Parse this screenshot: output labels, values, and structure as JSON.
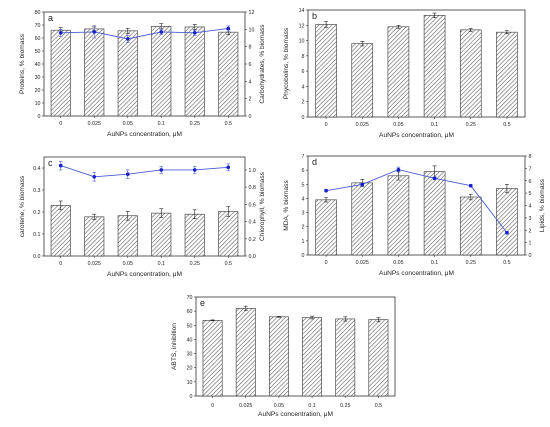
{
  "chart_data": [
    {
      "panel": "a",
      "type": "bar",
      "categories": [
        "0",
        "0.025",
        "0.05",
        "0.1",
        "0.25",
        "0.5"
      ],
      "xlabel": "AuNPs concentration, μM",
      "ylabel": "Proteins, % biomass",
      "ylim": [
        0,
        80
      ],
      "yticks": [
        0,
        10,
        20,
        30,
        40,
        50,
        60,
        70,
        80
      ],
      "values": [
        66,
        67,
        65.5,
        69,
        68.5,
        64.5
      ],
      "errors": [
        2,
        1.5,
        2,
        2,
        2,
        2
      ],
      "y2label": "Carbohydrates, % biomass",
      "y2lim": [
        0,
        12
      ],
      "y2ticks": [
        0,
        2,
        4,
        6,
        8,
        10,
        12
      ],
      "line_values": [
        9.6,
        9.7,
        8.9,
        9.7,
        9.6,
        10.1
      ],
      "line_errors": [
        0.4,
        0.7,
        0.4,
        0.3,
        0.3,
        0.3
      ]
    },
    {
      "panel": "b",
      "type": "bar",
      "categories": [
        "0",
        "0.025",
        "0.05",
        "0.1",
        "0.25",
        "0.5"
      ],
      "xlabel": "AuNPs concentration, μM",
      "ylabel": "Phycobolins, % biomass",
      "ylim": [
        0,
        14
      ],
      "yticks": [
        0,
        2,
        4,
        6,
        8,
        10,
        12,
        14
      ],
      "values": [
        12.1,
        9.6,
        11.8,
        13.3,
        11.4,
        11.1
      ],
      "errors": [
        0.4,
        0.3,
        0.2,
        0.3,
        0.2,
        0.2
      ]
    },
    {
      "panel": "c",
      "type": "bar",
      "categories": [
        "0",
        "0.025",
        "0.05",
        "0.1",
        "0.25",
        "0.5"
      ],
      "xlabel": "AuNPs concentration, μM",
      "ylabel": "carotene, % biomass",
      "ylim": [
        0,
        0.45
      ],
      "yticks": [
        0.0,
        0.1,
        0.2,
        0.3,
        0.4
      ],
      "values": [
        0.23,
        0.178,
        0.183,
        0.195,
        0.19,
        0.202
      ],
      "errors": [
        0.02,
        0.012,
        0.02,
        0.02,
        0.02,
        0.022
      ],
      "y2label": "Chlorophyll, % biomass",
      "y2lim": [
        0,
        1.15
      ],
      "y2ticks": [
        0.0,
        0.2,
        0.4,
        0.6,
        0.8,
        1.0
      ],
      "line_values": [
        1.05,
        0.92,
        0.95,
        1.0,
        1.0,
        1.03
      ],
      "line_errors": [
        0.05,
        0.05,
        0.05,
        0.04,
        0.04,
        0.04
      ]
    },
    {
      "panel": "d",
      "type": "bar",
      "categories": [
        "0",
        "0.025",
        "0.05",
        "0.1",
        "0.25",
        "0.5"
      ],
      "xlabel": "AuNPs concentration, μM",
      "ylabel": "MDA, % biomass",
      "ylim": [
        0,
        7
      ],
      "yticks": [
        0,
        1,
        2,
        3,
        4,
        5,
        6,
        7
      ],
      "values": [
        3.9,
        5.1,
        5.6,
        5.9,
        4.1,
        4.7
      ],
      "errors": [
        0.15,
        0.25,
        0.3,
        0.4,
        0.2,
        0.3
      ],
      "y2label": "Lipids, % biomass",
      "y2lim": [
        0,
        8
      ],
      "y2ticks": [
        0,
        1,
        2,
        3,
        4,
        5,
        6,
        7,
        8
      ],
      "line_values": [
        5.2,
        5.7,
        6.9,
        6.2,
        5.6,
        1.8
      ],
      "line_errors": [
        0.1,
        0.1,
        0.2,
        0.1,
        0.1,
        0.1
      ]
    },
    {
      "panel": "e",
      "type": "bar",
      "categories": [
        "0",
        "0.025",
        "0.05",
        "0.1",
        "0.25",
        "0.5"
      ],
      "xlabel": "AuNPs concentration, μM",
      "ylabel": "ABTS, inhibition",
      "ylim": [
        0,
        70
      ],
      "yticks": [
        0,
        10,
        20,
        30,
        40,
        50,
        60,
        70
      ],
      "values": [
        53.5,
        62,
        56,
        55.5,
        54.5,
        54
      ],
      "errors": [
        0.3,
        1.5,
        0.3,
        1,
        1.5,
        1.5
      ],
      "y_tick_decimals": 0
    }
  ],
  "style": {
    "bar_hatch_color": "#555555",
    "line_color": "#4a5bd6",
    "marker_color": "#1620c8"
  }
}
